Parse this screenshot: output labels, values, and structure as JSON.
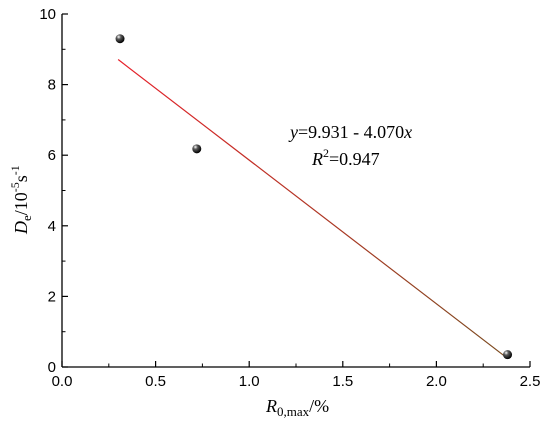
{
  "chart_data": {
    "type": "scatter",
    "xlabel": {
      "main": "R",
      "sub": "0,max",
      "suffix": "/%"
    },
    "ylabel": {
      "main": "D",
      "sub": "e",
      "suffix": "/10",
      "sup1": "-5",
      "unit": "s",
      "sup2": "-1"
    },
    "xlim": [
      0,
      2.5
    ],
    "ylim": [
      0,
      10
    ],
    "x_ticks": [
      "0.0",
      "0.5",
      "1.0",
      "1.5",
      "2.0",
      "2.5"
    ],
    "y_ticks": [
      "0",
      "2",
      "4",
      "6",
      "8",
      "10"
    ],
    "points": [
      {
        "x": 0.31,
        "y": 9.3
      },
      {
        "x": 0.72,
        "y": 6.18
      },
      {
        "x": 2.38,
        "y": 0.35
      }
    ],
    "fit_line": {
      "intercept": 9.931,
      "slope": -4.07,
      "x_start": 0.3,
      "x_end": 2.37,
      "color_start": "#e8202a",
      "color_end": "#7a4a1e"
    },
    "annotation": {
      "eq_var": "y",
      "eq_text": "=9.931 - 4.070",
      "eq_x": "x",
      "r2_main": "R",
      "r2_sup": "2",
      "r2_text": "=0.947"
    },
    "grid": false
  }
}
